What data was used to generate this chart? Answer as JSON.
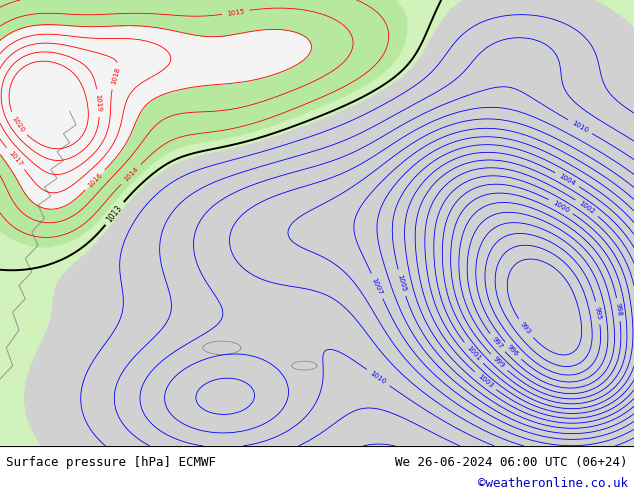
{
  "title_left": "Surface pressure [hPa] ECMWF",
  "title_right": "We 26-06-2024 06:00 UTC (06+24)",
  "copyright": "©weatheronline.co.uk",
  "font_size_bottom": 9,
  "font_size_copyright": 9,
  "green_rgb": [
    0.72,
    0.91,
    0.63
  ],
  "gray_rgb": [
    0.82,
    0.82,
    0.82
  ],
  "white_rgb": [
    0.96,
    0.96,
    0.96
  ],
  "light_green_rgb": [
    0.82,
    0.95,
    0.73
  ]
}
